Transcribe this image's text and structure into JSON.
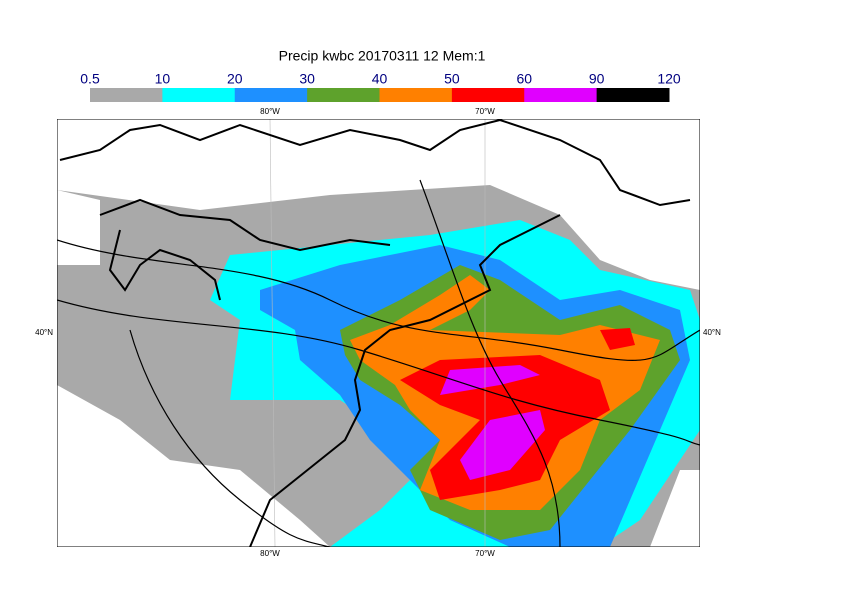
{
  "title": "Precip kwbc 20170311 12 Mem:1",
  "colorbar": {
    "levels": [
      0.5,
      10,
      20,
      30,
      40,
      50,
      60,
      90,
      120
    ],
    "colors": [
      "#a9a9a9",
      "#00ffff",
      "#1e90ff",
      "#5ea22c",
      "#ff8000",
      "#ff0000",
      "#e000ff",
      "#000000"
    ]
  },
  "map": {
    "lon_labels_top": [
      "80°W",
      "70°W"
    ],
    "lon_labels_bottom": [
      "80°W",
      "70°W"
    ],
    "lat_labels_left": [
      "40°N"
    ],
    "lat_labels_right": [
      "40°N"
    ]
  }
}
